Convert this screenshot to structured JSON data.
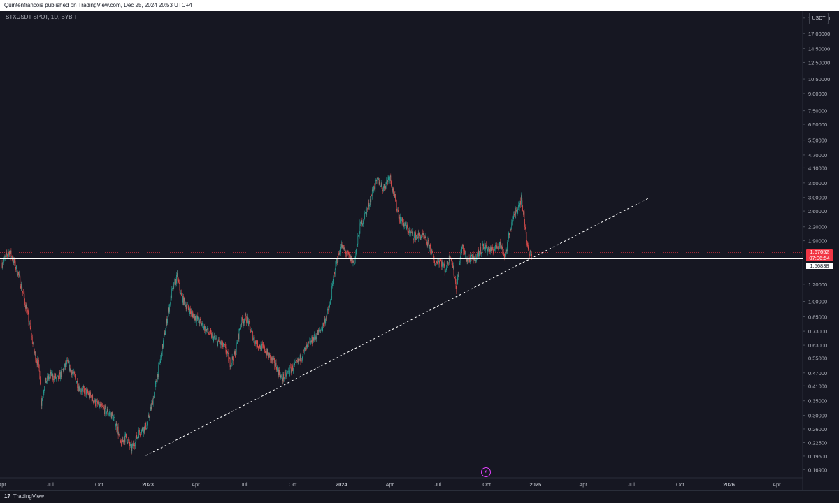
{
  "header": {
    "publisher_line": "Quintenfrancois published on TradingView.com, Dec 25, 2024 20:53 UTC+4"
  },
  "symbol": {
    "label": "STXUSDT SPOT, 1D, BYBIT"
  },
  "price_axis": {
    "currency": "USDT",
    "tick_labels": [
      "20.00000",
      "17.00000",
      "14.50000",
      "12.50000",
      "10.50000",
      "9.00000",
      "7.50000",
      "6.50000",
      "5.50000",
      "4.70000",
      "4.10000",
      "3.50000",
      "3.00000",
      "2.60000",
      "2.20000",
      "1.90000",
      "1.20000",
      "1.00000",
      "0.85000",
      "0.73000",
      "0.63000",
      "0.55000",
      "0.47000",
      "0.41000",
      "0.35000",
      "0.30000",
      "0.26000",
      "0.22500",
      "0.19500",
      "0.16900"
    ],
    "current_price": "1.67652",
    "countdown": "07:06:54",
    "horizontal_line_price": "1.56838"
  },
  "time_axis": {
    "tick_labels": [
      "Apr",
      "Jul",
      "Oct",
      "2023",
      "Apr",
      "Jul",
      "Oct",
      "2024",
      "Apr",
      "Jul",
      "Oct",
      "2025",
      "Apr",
      "Jul",
      "Oct",
      "2026",
      "Apr"
    ]
  },
  "footer": {
    "logo_text": "TradingView",
    "logo_mark": "17"
  },
  "colors": {
    "up": "#26a69a",
    "down": "#ef5350",
    "background": "#161722",
    "trendline": "#ffffff",
    "current_price_bg": "#f23645"
  },
  "icons": {
    "flash": "lightning-icon"
  },
  "chart_data": {
    "type": "line",
    "title": "STXUSDT SPOT, 1D, BYBIT",
    "scale": "log",
    "ylim": [
      0.155,
      21.5
    ],
    "xlim": [
      "2022-03-28",
      "2026-05-20"
    ],
    "series": [
      {
        "x": [
          "2022-04-01",
          "2022-04-15",
          "2022-05-01",
          "2022-05-10",
          "2022-05-20",
          "2022-06-01",
          "2022-06-10",
          "2022-06-14",
          "2022-06-20",
          "2022-07-01",
          "2022-07-15",
          "2022-08-01",
          "2022-08-12",
          "2022-08-25",
          "2022-09-10",
          "2022-09-25",
          "2022-10-10",
          "2022-10-25",
          "2022-11-05",
          "2022-11-10",
          "2022-11-20",
          "2022-12-01",
          "2022-12-15",
          "2022-12-30",
          "2023-01-10",
          "2023-01-25",
          "2023-02-05",
          "2023-02-15",
          "2023-02-25",
          "2023-03-05",
          "2023-03-15",
          "2023-03-25",
          "2023-04-10",
          "2023-04-25",
          "2023-05-10",
          "2023-05-25",
          "2023-06-05",
          "2023-06-15",
          "2023-06-25",
          "2023-07-05",
          "2023-07-15",
          "2023-07-25",
          "2023-08-10",
          "2023-08-20",
          "2023-09-01",
          "2023-09-10",
          "2023-09-25",
          "2023-10-10",
          "2023-10-25",
          "2023-11-10",
          "2023-11-25",
          "2023-12-10",
          "2023-12-20",
          "2024-01-01",
          "2024-01-15",
          "2024-01-25",
          "2024-02-05",
          "2024-02-20",
          "2024-03-01",
          "2024-03-10",
          "2024-03-20",
          "2024-04-01",
          "2024-04-10",
          "2024-04-20",
          "2024-05-01",
          "2024-05-15",
          "2024-06-01",
          "2024-06-15",
          "2024-06-25",
          "2024-07-05",
          "2024-07-15",
          "2024-07-25",
          "2024-08-05",
          "2024-08-15",
          "2024-08-25",
          "2024-09-10",
          "2024-09-25",
          "2024-10-10",
          "2024-10-25",
          "2024-11-05",
          "2024-11-15",
          "2024-11-25",
          "2024-12-05",
          "2024-12-10",
          "2024-12-15",
          "2024-12-20",
          "2024-12-25"
        ],
        "y": [
          1.5,
          1.7,
          1.35,
          1.1,
          0.85,
          0.58,
          0.5,
          0.34,
          0.42,
          0.46,
          0.44,
          0.52,
          0.47,
          0.4,
          0.38,
          0.34,
          0.32,
          0.3,
          0.26,
          0.22,
          0.24,
          0.21,
          0.25,
          0.27,
          0.35,
          0.55,
          0.8,
          1.1,
          1.3,
          1.05,
          0.95,
          0.88,
          0.8,
          0.72,
          0.66,
          0.62,
          0.52,
          0.58,
          0.8,
          0.85,
          0.72,
          0.64,
          0.6,
          0.55,
          0.5,
          0.44,
          0.48,
          0.52,
          0.6,
          0.68,
          0.75,
          0.95,
          1.45,
          1.8,
          1.6,
          1.5,
          2.2,
          2.7,
          3.3,
          3.6,
          3.3,
          3.8,
          3.0,
          2.4,
          2.2,
          2.0,
          2.0,
          1.8,
          1.5,
          1.55,
          1.4,
          1.65,
          1.15,
          1.8,
          1.55,
          1.6,
          1.8,
          1.7,
          1.85,
          1.6,
          2.2,
          2.6,
          2.95,
          2.5,
          1.95,
          1.62,
          1.68
        ]
      }
    ],
    "trendline": {
      "x": [
        "2022-12-28",
        "2025-08-05"
      ],
      "y": [
        0.196,
        3.0
      ]
    },
    "horizontal_line": 1.56838
  }
}
